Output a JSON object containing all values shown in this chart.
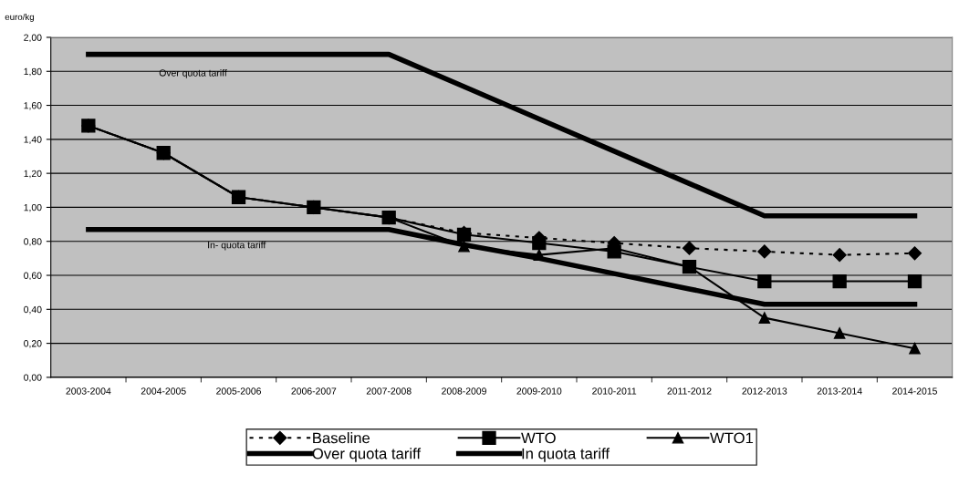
{
  "chart_data": {
    "type": "line",
    "ylabel": "euro/kg",
    "categories": [
      "2003-2004",
      "2004-2005",
      "2005-2006",
      "2006-2007",
      "2007-2008",
      "2008-2009",
      "2009-2010",
      "2010-2011",
      "2011-2012",
      "2012-2013",
      "2013-2014",
      "2014-2015"
    ],
    "series": [
      {
        "name": "Baseline",
        "color": "#000000",
        "marker": "diamond",
        "line_style": "dotted",
        "values": [
          1.48,
          1.32,
          1.06,
          1.0,
          0.94,
          0.85,
          0.82,
          0.79,
          0.76,
          0.74,
          0.72,
          0.73
        ]
      },
      {
        "name": "WTO",
        "color": "#000000",
        "marker": "square",
        "line_style": "solid",
        "values": [
          1.48,
          1.32,
          1.06,
          1.0,
          0.94,
          0.84,
          0.79,
          0.74,
          0.65,
          0.565,
          0.565,
          0.565
        ]
      },
      {
        "name": "WTO1",
        "color": "#000000",
        "marker": "triangle",
        "line_style": "solid",
        "values": [
          1.48,
          1.32,
          1.06,
          1.0,
          0.94,
          0.77,
          0.72,
          0.76,
          0.65,
          0.35,
          0.26,
          0.17
        ]
      },
      {
        "name": "Over quota tariff",
        "color": "#000000",
        "marker": "none",
        "line_style": "solid",
        "values": [
          1.9,
          1.9,
          1.9,
          1.9,
          1.9,
          1.71,
          1.52,
          1.33,
          1.14,
          0.95,
          0.95,
          0.95
        ]
      },
      {
        "name": "In quota tariff",
        "color": "#000000",
        "marker": "none",
        "line_style": "solid",
        "values": [
          0.87,
          0.87,
          0.87,
          0.87,
          0.87,
          0.78,
          0.7,
          0.61,
          0.52,
          0.43,
          0.43,
          0.43
        ]
      }
    ],
    "annotations": [
      "Over quota tariff",
      "In- quota tariff"
    ],
    "ylim": [
      0,
      2
    ],
    "yticks": [
      {
        "value": 0,
        "label": "0,00"
      },
      {
        "value": 0.2,
        "label": "0,20"
      },
      {
        "value": 0.4,
        "label": "0,40"
      },
      {
        "value": 0.6,
        "label": "0,60"
      },
      {
        "value": 0.8,
        "label": "0,80"
      },
      {
        "value": 1.0,
        "label": "1,00"
      },
      {
        "value": 1.2,
        "label": "1,20"
      },
      {
        "value": 1.4,
        "label": "1,40"
      },
      {
        "value": 1.6,
        "label": "1,60"
      },
      {
        "value": 1.8,
        "label": "1,80"
      },
      {
        "value": 2.0,
        "label": "2,00"
      }
    ],
    "grid": "y",
    "legend": "bottom"
  }
}
